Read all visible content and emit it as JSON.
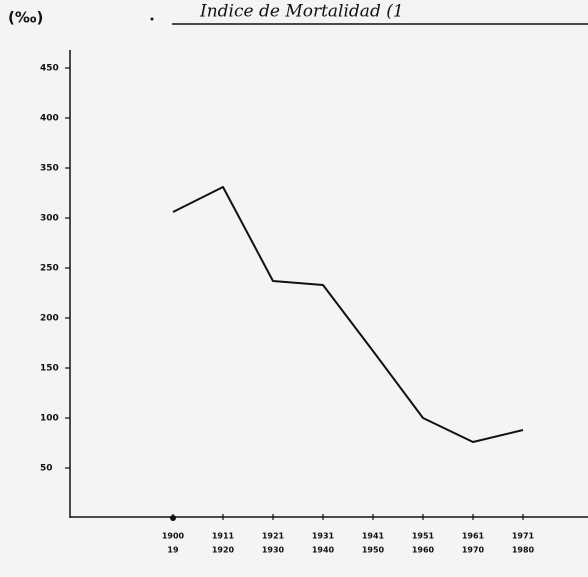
{
  "chart_data": {
    "type": "line",
    "title": "Indice de Mortalidad (1",
    "y_label": "(‰)",
    "categories": [
      [
        "1900",
        "19"
      ],
      [
        "1911",
        "1920"
      ],
      [
        "1921",
        "1930"
      ],
      [
        "1931",
        "1940"
      ],
      [
        "1941",
        "1950"
      ],
      [
        "1951",
        "1960"
      ],
      [
        "1961",
        "1970"
      ],
      [
        "1971",
        "1980"
      ]
    ],
    "values": [
      306,
      331,
      237,
      233,
      167,
      100,
      76,
      88
    ],
    "color": "#111111",
    "ylim": [
      0,
      460
    ],
    "yticks": [
      50,
      100,
      150,
      200,
      250,
      300,
      350,
      400,
      450
    ],
    "grid": false
  }
}
